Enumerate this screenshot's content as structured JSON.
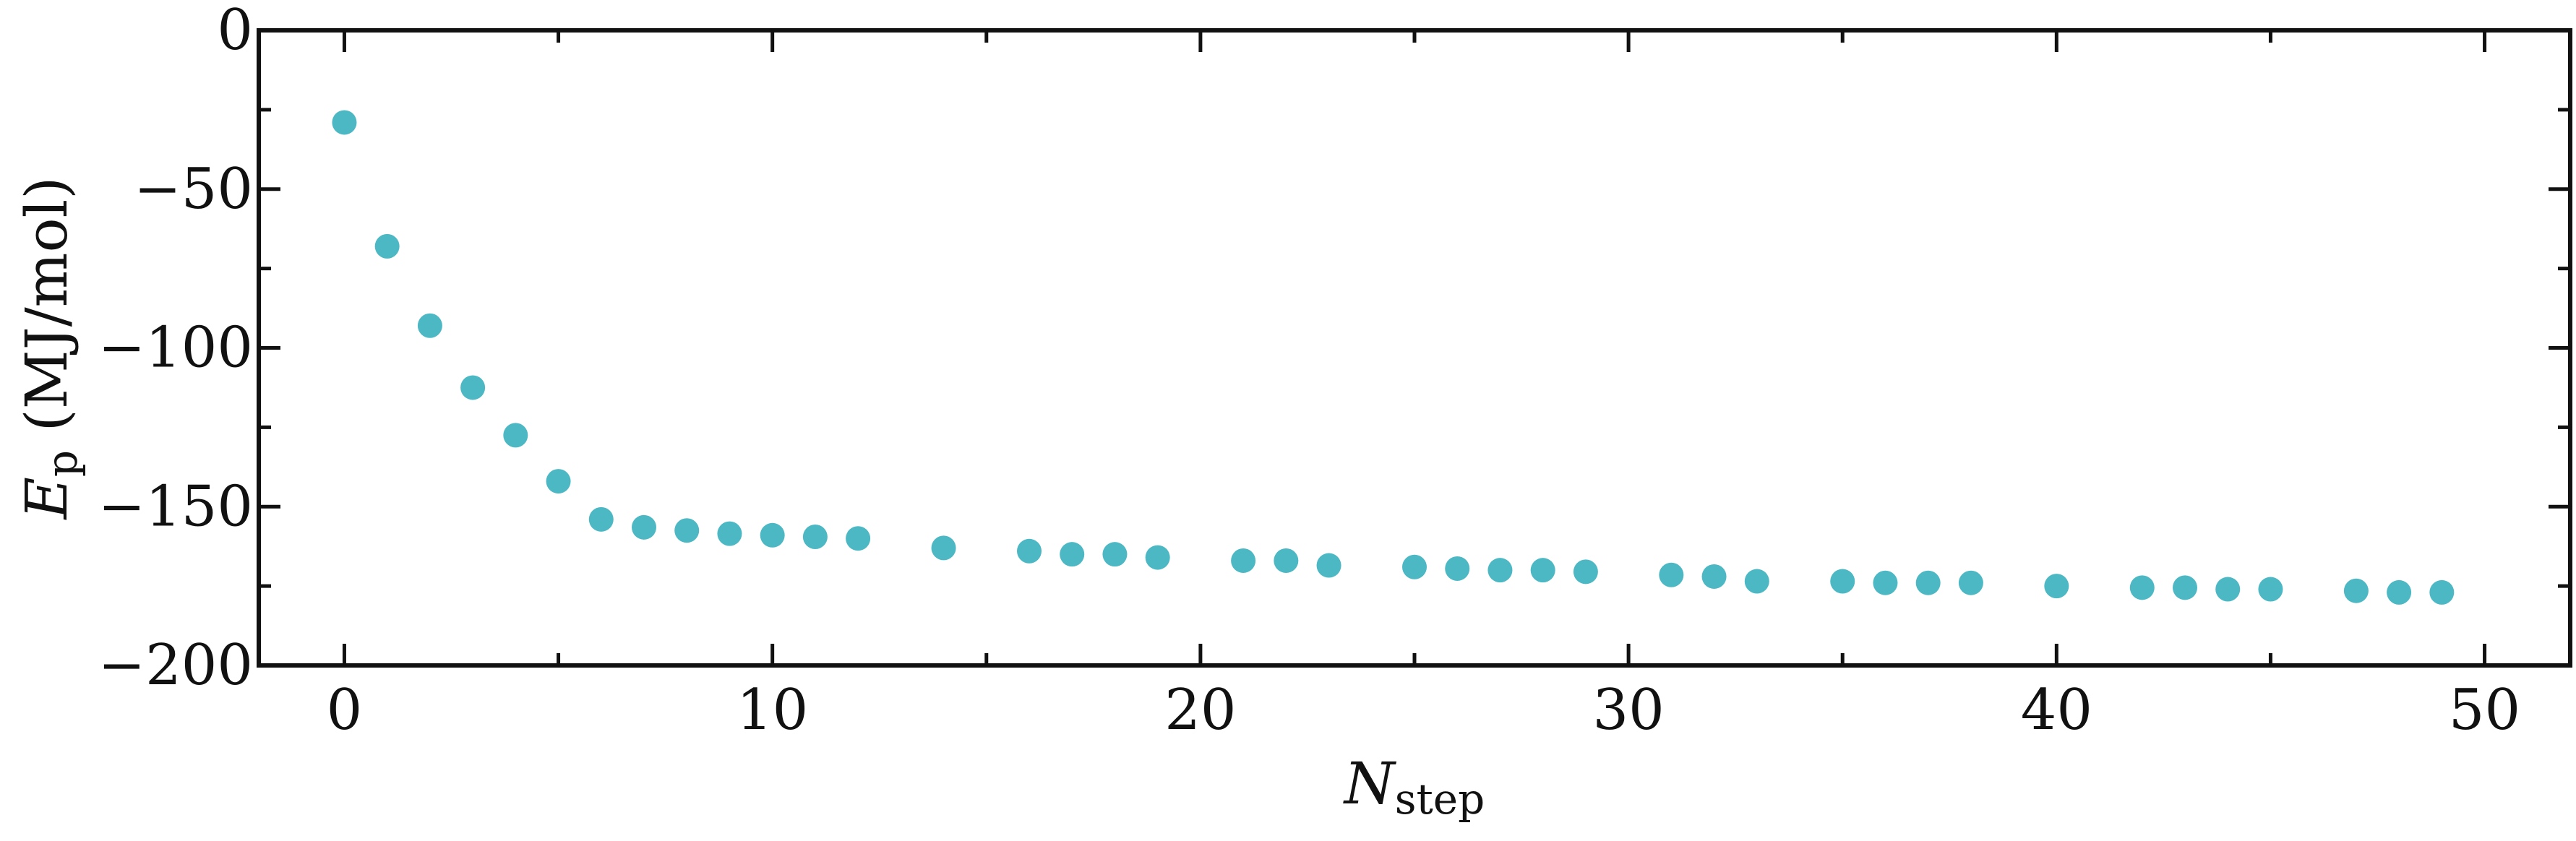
{
  "chart_data": {
    "type": "scatter",
    "xlabel": {
      "main": "N",
      "sub": "step"
    },
    "ylabel": {
      "main": "E",
      "sub": "p",
      "unit": " (MJ/mol)"
    },
    "xlim": [
      -2,
      52
    ],
    "ylim": [
      -200,
      0
    ],
    "x_ticks_major": [
      0,
      10,
      20,
      30,
      40,
      50
    ],
    "x_ticks_minor": [
      5,
      15,
      25,
      35,
      45
    ],
    "y_ticks_major": [
      0,
      -50,
      -100,
      -150,
      -200
    ],
    "y_ticks_minor": [
      -25,
      -75,
      -125,
      -175
    ],
    "x_tick_labels": [
      "0",
      "10",
      "20",
      "30",
      "40",
      "50"
    ],
    "y_tick_labels": [
      "0",
      "−50",
      "−100",
      "−150",
      "−200"
    ],
    "marker_color": "#4BB8C4",
    "series": [
      {
        "x": [
          0,
          1,
          2,
          3,
          4,
          5,
          6,
          7,
          8,
          9,
          10,
          11,
          12,
          14,
          16,
          17,
          18,
          19,
          21,
          22,
          23,
          25,
          26,
          27,
          28,
          29,
          31,
          32,
          33,
          35,
          36,
          37,
          38,
          40,
          42,
          43,
          44,
          45,
          47,
          48,
          49
        ],
        "y": [
          -29,
          -68,
          -93,
          -112.5,
          -127.5,
          -142,
          -154,
          -156.5,
          -157.5,
          -158.5,
          -159,
          -159.5,
          -160,
          -163,
          -164,
          -165,
          -165,
          -166,
          -167,
          -167,
          -168.5,
          -169,
          -169.5,
          -170,
          -170,
          -170.5,
          -171.5,
          -172,
          -173.5,
          -173.5,
          -174,
          -174,
          -174,
          -175,
          -175.5,
          -175.5,
          -176,
          -176,
          -176.5,
          -177,
          -177
        ]
      }
    ]
  }
}
